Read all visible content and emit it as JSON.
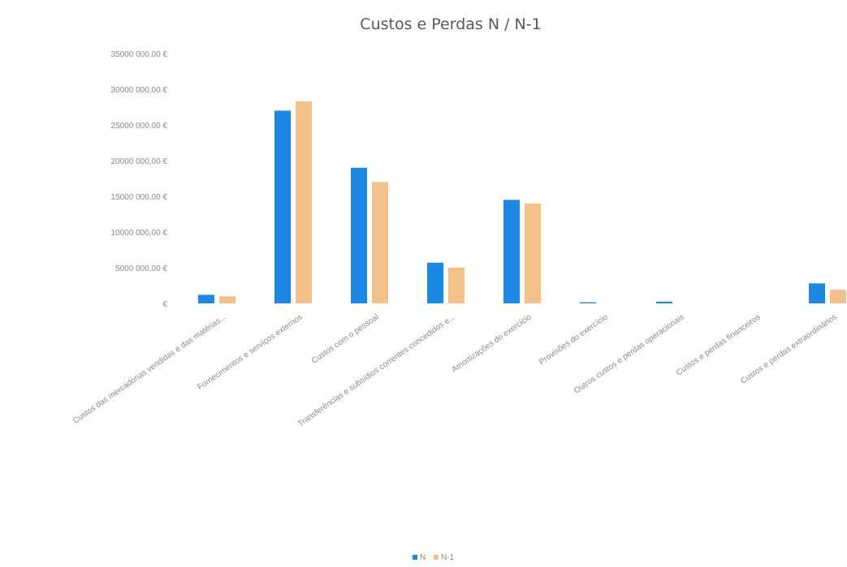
{
  "chart_data": {
    "type": "bar",
    "title": "Custos e Perdas N / N-1",
    "xlabel": "",
    "ylabel": "",
    "ylim": [
      0,
      35000000
    ],
    "y_ticks": [
      0,
      5000000,
      10000000,
      15000000,
      20000000,
      25000000,
      30000000,
      35000000
    ],
    "y_tick_labels": [
      "€",
      "5000 000,00 €",
      "10000 000,00 €",
      "15000 000,00 €",
      "20000 000,00 €",
      "25000 000,00 €",
      "30000 000,00 €",
      "35000 000,00 €"
    ],
    "grid": false,
    "legend_position": "bottom",
    "categories": [
      "Custos das mercadorias vendidas e das matérias...",
      "Fornecimentos e serviços externos",
      "Custos com o pessoal",
      "Transferências e subsídios correntes concedidos e...",
      "Amortizações do exercício",
      "Provisões do exercício",
      "Outros custos e perdas operacionais",
      "Custos e perdas financeiros",
      "Custos e perdas extraordinários"
    ],
    "series": [
      {
        "name": "N",
        "color": "#1e88e5",
        "values": [
          1200000,
          27000000,
          19000000,
          5700000,
          14500000,
          150000,
          250000,
          0,
          2800000
        ]
      },
      {
        "name": "N-1",
        "color": "#f5c18a",
        "values": [
          1000000,
          28300000,
          17000000,
          5000000,
          14000000,
          0,
          0,
          0,
          1900000
        ]
      }
    ]
  }
}
